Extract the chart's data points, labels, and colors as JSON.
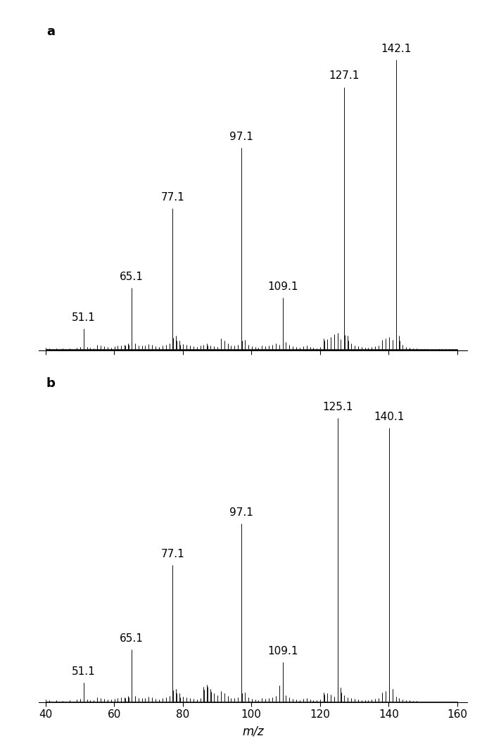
{
  "panel_a": {
    "label": "a",
    "labeled_peaks": [
      {
        "mz": 51.1,
        "intensity": 0.068,
        "label": "51.1"
      },
      {
        "mz": 65.1,
        "intensity": 0.195,
        "label": "65.1"
      },
      {
        "mz": 77.1,
        "intensity": 0.445,
        "label": "77.1"
      },
      {
        "mz": 97.1,
        "intensity": 0.635,
        "label": "97.1"
      },
      {
        "mz": 109.1,
        "intensity": 0.165,
        "label": "109.1"
      },
      {
        "mz": 127.1,
        "intensity": 0.825,
        "label": "127.1"
      },
      {
        "mz": 142.1,
        "intensity": 0.91,
        "label": "142.1"
      }
    ]
  },
  "panel_b": {
    "label": "b",
    "labeled_peaks": [
      {
        "mz": 51.1,
        "intensity": 0.062,
        "label": "51.1"
      },
      {
        "mz": 65.1,
        "intensity": 0.165,
        "label": "65.1"
      },
      {
        "mz": 77.1,
        "intensity": 0.43,
        "label": "77.1"
      },
      {
        "mz": 97.1,
        "intensity": 0.56,
        "label": "97.1"
      },
      {
        "mz": 109.1,
        "intensity": 0.125,
        "label": "109.1"
      },
      {
        "mz": 125.1,
        "intensity": 0.89,
        "label": "125.1"
      },
      {
        "mz": 140.1,
        "intensity": 0.86,
        "label": "140.1"
      }
    ]
  },
  "xlabel": "m/z",
  "xlim": [
    38,
    163
  ],
  "xticks": [
    40,
    60,
    80,
    100,
    120,
    140,
    160
  ],
  "ylim": [
    0,
    1.05
  ],
  "bar_color": "#111111",
  "label_fontsize": 11,
  "panel_label_fontsize": 13,
  "axis_label_fontsize": 12,
  "tick_fontsize": 11
}
